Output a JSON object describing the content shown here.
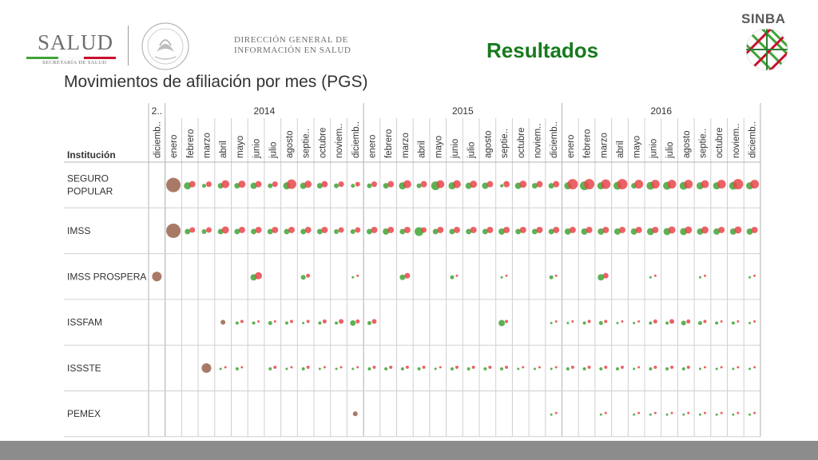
{
  "header": {
    "salud_word": "SALUD",
    "salud_sub": "SECRETARÍA DE SALUD",
    "dgis_line1": "DIRECCIÓN GENERAL DE",
    "dgis_line2": "INFORMACIÓN EN SALUD",
    "result_title": "Resultados",
    "sinba": "SINBA"
  },
  "colors": {
    "green": "#3fa535",
    "light_green": "#7ccd6c",
    "red": "#e8474b",
    "brown": "#a06a57",
    "grid": "#d0d0d0",
    "title_green": "#177a1f",
    "footer": "#8c8c8c"
  },
  "chart_data": {
    "type": "scatter",
    "title": "Movimientos de afiliación por mes (PGS)",
    "row_header": "Institución",
    "years": [
      {
        "label": "2..",
        "span": 1
      },
      {
        "label": "2014",
        "span": 12
      },
      {
        "label": "2015",
        "span": 12
      },
      {
        "label": "2016",
        "span": 12
      }
    ],
    "months": [
      "diciemb..",
      "enero",
      "febrero",
      "marzo",
      "abril",
      "mayo",
      "junio",
      "julio",
      "agosto",
      "septie..",
      "octubre",
      "noviem..",
      "diciemb..",
      "enero",
      "febrero",
      "marzo",
      "abril",
      "mayo",
      "junio",
      "julio",
      "agosto",
      "septie..",
      "octubre",
      "noviem..",
      "diciemb..",
      "enero",
      "febrero",
      "marzo",
      "abril",
      "mayo",
      "junio",
      "julio",
      "agosto",
      "septie..",
      "octubre",
      "noviem..",
      "diciemb.."
    ],
    "institutions": [
      {
        "label": "SEGURO\nPOPULAR",
        "cells": [
          null,
          {
            "b": 18
          },
          {
            "g": 9,
            "r": 8
          },
          {
            "g": 5,
            "r": 7
          },
          {
            "r": 10,
            "g": 7
          },
          {
            "g": 7,
            "r": 9
          },
          {
            "g": 8,
            "r": 8
          },
          {
            "g": 6,
            "r": 7
          },
          {
            "g": 9,
            "r": 12
          },
          {
            "g": 8,
            "r": 9
          },
          {
            "g": 7,
            "r": 8
          },
          {
            "g": 6,
            "r": 7
          },
          {
            "g": 5,
            "r": 6
          },
          {
            "g": 6,
            "r": 7
          },
          {
            "g": 7,
            "r": 8
          },
          {
            "g": 9,
            "r": 10
          },
          {
            "g": 6,
            "r": 8
          },
          {
            "g": 11,
            "r": 10
          },
          {
            "g": 9,
            "r": 10
          },
          {
            "g": 8,
            "r": 9
          },
          {
            "g": 8,
            "r": 8
          },
          {
            "g": 4,
            "r": 8
          },
          {
            "g": 8,
            "r": 9
          },
          {
            "g": 7,
            "r": 8
          },
          {
            "g": 7,
            "r": 8
          },
          {
            "g": 9,
            "r": 13
          },
          {
            "g": 11,
            "r": 13
          },
          {
            "g": 9,
            "r": 12
          },
          {
            "g": 10,
            "r": 13
          },
          {
            "g": 7,
            "r": 11
          },
          {
            "g": 10,
            "r": 11
          },
          {
            "g": 10,
            "r": 11
          },
          {
            "g": 10,
            "r": 11
          },
          {
            "g": 9,
            "r": 10
          },
          {
            "g": 9,
            "r": 11
          },
          {
            "g": 10,
            "r": 13
          },
          {
            "g": 9,
            "r": 11
          }
        ]
      },
      {
        "label": "IMSS",
        "cells": [
          null,
          {
            "b": 18
          },
          {
            "g": 7,
            "r": 7
          },
          {
            "g": 6,
            "r": 7
          },
          {
            "g": 7,
            "r": 9
          },
          {
            "g": 7,
            "r": 8
          },
          {
            "g": 7,
            "r": 8
          },
          {
            "g": 7,
            "r": 8
          },
          {
            "g": 7,
            "r": 8
          },
          {
            "g": 7,
            "r": 8
          },
          {
            "g": 7,
            "r": 8
          },
          {
            "g": 6,
            "r": 7
          },
          {
            "g": 6,
            "r": 7
          },
          {
            "g": 7,
            "r": 8
          },
          {
            "g": 8,
            "r": 8
          },
          {
            "g": 7,
            "r": 8
          },
          {
            "g": 11,
            "r": 7
          },
          {
            "g": 7,
            "r": 8
          },
          {
            "g": 7,
            "r": 8
          },
          {
            "g": 7,
            "r": 8
          },
          {
            "g": 7,
            "r": 8
          },
          {
            "g": 8,
            "r": 8
          },
          {
            "g": 7,
            "r": 8
          },
          {
            "g": 7,
            "r": 8
          },
          {
            "g": 7,
            "r": 8
          },
          {
            "g": 8,
            "r": 8
          },
          {
            "g": 8,
            "r": 8
          },
          {
            "g": 8,
            "r": 8
          },
          {
            "g": 8,
            "r": 8
          },
          {
            "g": 8,
            "r": 8
          },
          {
            "g": 9,
            "r": 8
          },
          {
            "g": 9,
            "r": 9
          },
          {
            "g": 9,
            "r": 9
          },
          {
            "g": 8,
            "r": 9
          },
          {
            "g": 8,
            "r": 8
          },
          {
            "g": 8,
            "r": 9
          },
          {
            "g": 8,
            "r": 8
          }
        ]
      },
      {
        "label": "IMSS PROSPERA",
        "cells": [
          {
            "b": 12
          },
          null,
          null,
          null,
          null,
          null,
          {
            "g": 8,
            "r": 9
          },
          null,
          null,
          {
            "g": 6,
            "r": 5
          },
          null,
          null,
          {
            "g": 3,
            "r": 3
          },
          null,
          null,
          {
            "g": 7,
            "r": 7
          },
          null,
          null,
          {
            "g": 5,
            "r": 3
          },
          null,
          null,
          {
            "g": 3,
            "r": 3
          },
          null,
          null,
          {
            "g": 5,
            "r": 3
          },
          null,
          null,
          {
            "g": 8,
            "r": 7
          },
          null,
          null,
          {
            "g": 3,
            "r": 3
          },
          null,
          null,
          {
            "g": 3,
            "r": 3
          },
          null,
          null,
          {
            "g": 3,
            "r": 3
          }
        ]
      },
      {
        "label": "ISSFAM",
        "cells": [
          null,
          null,
          null,
          null,
          {
            "b": 6
          },
          {
            "g": 4,
            "r": 4
          },
          {
            "g": 4,
            "r": 3
          },
          {
            "g": 5,
            "r": 3
          },
          {
            "g": 4,
            "r": 4
          },
          {
            "g": 3,
            "r": 4
          },
          {
            "g": 4,
            "r": 5
          },
          {
            "g": 4,
            "r": 6
          },
          {
            "g": 7,
            "r": 5
          },
          {
            "g": 5,
            "r": 6
          },
          null,
          null,
          null,
          null,
          null,
          null,
          null,
          {
            "g": 8,
            "r": 4
          },
          null,
          null,
          {
            "g": 3,
            "r": 3
          },
          {
            "g": 3,
            "r": 3
          },
          {
            "g": 4,
            "r": 4
          },
          {
            "g": 5,
            "r": 4
          },
          {
            "g": 3,
            "r": 3
          },
          {
            "g": 3,
            "r": 3
          },
          {
            "g": 4,
            "r": 5
          },
          {
            "g": 4,
            "r": 6
          },
          {
            "g": 6,
            "r": 5
          },
          {
            "g": 5,
            "r": 4
          },
          {
            "g": 4,
            "r": 3
          },
          {
            "g": 4,
            "r": 3
          },
          {
            "g": 3,
            "r": 3
          }
        ]
      },
      {
        "label": "ISSSTE",
        "cells": [
          null,
          null,
          null,
          {
            "b": 12
          },
          {
            "g": 3,
            "r": 3
          },
          {
            "g": 4,
            "r": 3
          },
          null,
          {
            "g": 4,
            "r": 4
          },
          {
            "g": 3,
            "r": 3
          },
          {
            "g": 4,
            "r": 4
          },
          {
            "g": 3,
            "r": 3
          },
          {
            "g": 3,
            "r": 3
          },
          {
            "g": 3,
            "r": 3
          },
          {
            "g": 4,
            "r": 4
          },
          {
            "g": 4,
            "r": 4
          },
          {
            "g": 4,
            "r": 4
          },
          {
            "g": 4,
            "r": 4
          },
          {
            "g": 3,
            "r": 3
          },
          {
            "g": 4,
            "r": 4
          },
          {
            "g": 4,
            "r": 4
          },
          {
            "g": 4,
            "r": 4
          },
          {
            "g": 4,
            "r": 4
          },
          {
            "g": 3,
            "r": 3
          },
          {
            "g": 3,
            "r": 3
          },
          {
            "g": 3,
            "r": 3
          },
          {
            "g": 4,
            "r": 4
          },
          {
            "g": 4,
            "r": 4
          },
          {
            "g": 4,
            "r": 4
          },
          {
            "g": 4,
            "r": 4
          },
          {
            "g": 3,
            "r": 3
          },
          {
            "g": 4,
            "r": 4
          },
          {
            "g": 4,
            "r": 4
          },
          {
            "g": 4,
            "r": 4
          },
          {
            "g": 3,
            "r": 3
          },
          {
            "g": 3,
            "r": 3
          },
          {
            "g": 3,
            "r": 3
          },
          {
            "g": 3,
            "r": 3
          }
        ]
      },
      {
        "label": "PEMEX",
        "cells": [
          null,
          null,
          null,
          null,
          null,
          null,
          null,
          null,
          null,
          null,
          null,
          null,
          {
            "b": 6
          },
          null,
          null,
          null,
          null,
          null,
          null,
          null,
          null,
          null,
          null,
          null,
          {
            "g": 3,
            "r": 3
          },
          null,
          null,
          {
            "g": 3,
            "r": 3
          },
          null,
          {
            "g": 3,
            "r": 3
          },
          {
            "g": 3,
            "r": 3
          },
          {
            "g": 3,
            "r": 3
          },
          {
            "g": 3,
            "r": 3
          },
          {
            "g": 3,
            "r": 3
          },
          {
            "g": 3,
            "r": 3
          },
          {
            "g": 3,
            "r": 3
          },
          {
            "g": 3,
            "r": 3
          }
        ]
      }
    ]
  }
}
